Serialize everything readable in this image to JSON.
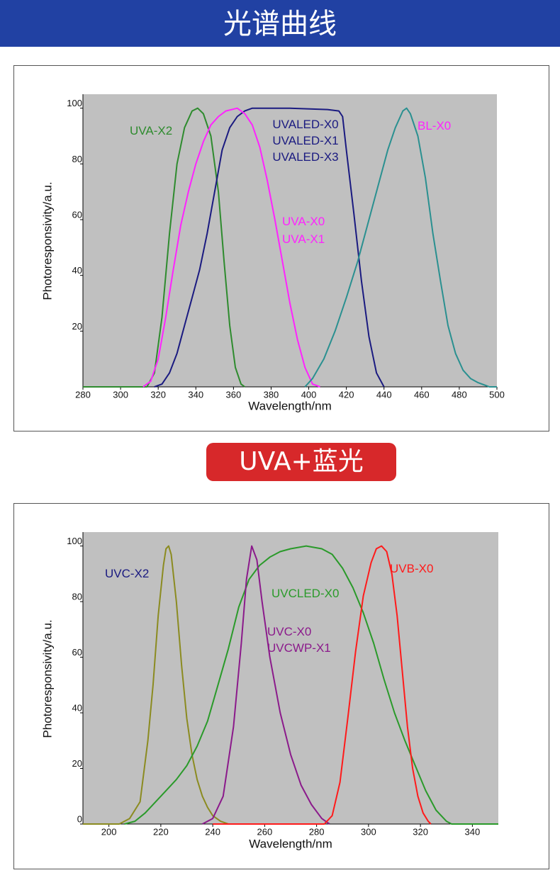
{
  "header": {
    "title": "光谱曲线"
  },
  "badge": "UVA+蓝光",
  "chart_data": [
    {
      "type": "line",
      "x_label": "Wavelength/nm",
      "y_label": "Photoresponsivity/a.u.",
      "xlim": [
        280,
        500
      ],
      "ylim": [
        0,
        105
      ],
      "xticks": [
        280,
        300,
        320,
        340,
        360,
        380,
        400,
        420,
        440,
        460,
        480,
        500
      ],
      "yticks": [
        20,
        40,
        60,
        80,
        100
      ],
      "grid": false,
      "background": "#c0c0c0",
      "series": [
        {
          "labels": [
            "UVA-X2"
          ],
          "color": "#2e8b2e",
          "label_color": "#2e8b2e",
          "x": [
            280,
            314,
            318,
            322,
            326,
            330,
            334,
            338,
            341,
            344,
            348,
            352,
            355,
            358,
            361,
            364,
            366
          ],
          "values": [
            0,
            0,
            5,
            25,
            55,
            80,
            93,
            99,
            100,
            98,
            90,
            70,
            45,
            22,
            7,
            1,
            0
          ]
        },
        {
          "labels": [
            "UVALED-X0",
            "UVALED-X1",
            "UVALED-X3"
          ],
          "color": "#1a1a80",
          "label_color": "#1a1a80",
          "x": [
            318,
            322,
            326,
            330,
            334,
            338,
            342,
            346,
            350,
            354,
            358,
            362,
            366,
            370,
            390,
            410,
            416,
            418,
            420,
            424,
            428,
            432,
            436,
            440
          ],
          "values": [
            0,
            1,
            5,
            12,
            22,
            32,
            42,
            55,
            70,
            85,
            93,
            97,
            99,
            100,
            100,
            99.5,
            99,
            97,
            85,
            62,
            38,
            18,
            5,
            0
          ]
        },
        {
          "labels": [
            "UVA-X0",
            "UVA-X1"
          ],
          "color": "#ff22ff",
          "label_color": "#ff22ff",
          "x": [
            312,
            316,
            320,
            324,
            328,
            332,
            336,
            340,
            344,
            348,
            352,
            356,
            362,
            366,
            370,
            374,
            378,
            382,
            386,
            390,
            394,
            398,
            402,
            406
          ],
          "values": [
            0,
            2,
            10,
            25,
            42,
            58,
            70,
            80,
            88,
            94,
            97,
            99,
            100,
            98,
            94,
            86,
            74,
            60,
            45,
            30,
            17,
            7,
            1,
            0
          ]
        },
        {
          "labels": [
            "BL-X0"
          ],
          "color": "#2a9090",
          "label_color": "#ff22ff",
          "x": [
            398,
            402,
            408,
            414,
            420,
            426,
            432,
            438,
            442,
            446,
            450,
            452,
            454,
            458,
            462,
            466,
            470,
            474,
            478,
            482,
            486,
            490,
            494,
            496,
            500
          ],
          "values": [
            0,
            3,
            10,
            20,
            32,
            45,
            60,
            75,
            85,
            93,
            99,
            100,
            98,
            90,
            75,
            55,
            38,
            22,
            12,
            6,
            3,
            1.5,
            0.5,
            0,
            0
          ]
        }
      ]
    },
    {
      "type": "line",
      "x_label": "Wavelength/nm",
      "y_label": "Photoresponsivity/a.u.",
      "xlim": [
        190,
        350
      ],
      "ylim": [
        0,
        105
      ],
      "xticks": [
        200,
        220,
        240,
        260,
        280,
        300,
        320,
        340
      ],
      "yticks": [
        0,
        20,
        40,
        60,
        80,
        100
      ],
      "grid": false,
      "background": "#c0c0c0",
      "series": [
        {
          "labels": [
            "UVC-X2"
          ],
          "color": "#8b8b20",
          "label_color": "#1a1a80",
          "x": [
            190,
            204,
            208,
            212,
            215,
            217,
            219,
            221,
            222,
            223,
            224,
            226,
            228,
            230,
            232,
            234,
            236,
            238,
            240,
            243,
            246
          ],
          "values": [
            0,
            0,
            2,
            8,
            30,
            50,
            75,
            93,
            99,
            100,
            97,
            80,
            57,
            38,
            25,
            16,
            10,
            6,
            3,
            1,
            0
          ]
        },
        {
          "labels": [
            "UVCLED-X0"
          ],
          "color": "#2a9a2a",
          "label_color": "#2a9a2a",
          "x": [
            206,
            210,
            214,
            218,
            222,
            226,
            230,
            234,
            238,
            242,
            246,
            250,
            254,
            258,
            262,
            266,
            270,
            276,
            282,
            286,
            290,
            294,
            298,
            302,
            306,
            310,
            314,
            318,
            322,
            326,
            330,
            332,
            350
          ],
          "values": [
            0,
            1,
            4,
            8,
            12,
            16,
            21,
            28,
            37,
            50,
            63,
            78,
            88,
            93,
            96,
            98,
            99,
            100,
            99,
            97,
            92,
            85,
            76,
            65,
            52,
            40,
            30,
            21,
            12,
            5,
            1,
            0,
            0
          ]
        },
        {
          "labels": [
            "UVC-X0",
            "UVCWP-X1"
          ],
          "color": "#8b1a8b",
          "label_color": "#8b1a8b",
          "x": [
            236,
            240,
            244,
            248,
            251,
            253,
            255,
            257,
            259,
            262,
            266,
            270,
            274,
            278,
            282,
            285
          ],
          "values": [
            0,
            2,
            10,
            35,
            65,
            88,
            100,
            95,
            80,
            60,
            40,
            25,
            14,
            7,
            2,
            0
          ]
        },
        {
          "labels": [
            "UVB-X0"
          ],
          "color": "#ff1a1a",
          "label_color": "#ff1a1a",
          "x": [
            240,
            283,
            286,
            289,
            292,
            295,
            298,
            301,
            303,
            305,
            307,
            309,
            311,
            313,
            315,
            317,
            319,
            321,
            323,
            324
          ],
          "values": [
            0,
            0,
            3,
            15,
            38,
            62,
            82,
            94,
            99,
            100,
            98,
            90,
            75,
            55,
            35,
            20,
            10,
            4,
            1,
            0
          ]
        }
      ]
    }
  ]
}
